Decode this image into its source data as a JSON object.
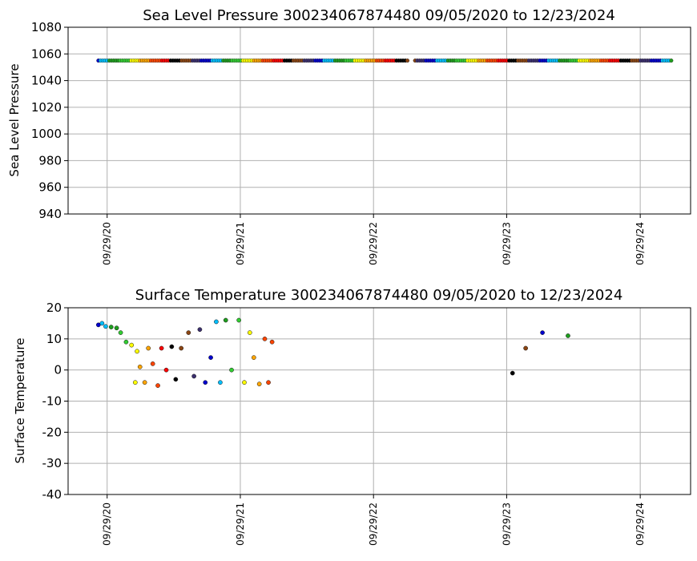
{
  "palette": [
    "#8B4513",
    "#3B2F6E",
    "#0000CD",
    "#00BFFF",
    "#1E9E1E",
    "#32CD32",
    "#FFFF00",
    "#FFA500",
    "#FF4500",
    "#FF0000",
    "#000000"
  ],
  "chart_data": [
    {
      "type": "scatter",
      "title": "Sea Level Pressure 300234067874480  09/05/2020 to 12/23/2024",
      "xlabel": "",
      "ylabel": "Sea Level Pressure",
      "ylim": [
        940,
        1080
      ],
      "yticks": [
        940,
        960,
        980,
        1000,
        1020,
        1040,
        1060,
        1080
      ],
      "xlim": [
        "2020-06-14",
        "2025-02-14"
      ],
      "xticks": [
        {
          "date": "2020-09-29",
          "label": "09/29/20"
        },
        {
          "date": "2021-09-29",
          "label": "09/29/21"
        },
        {
          "date": "2022-09-29",
          "label": "09/29/22"
        },
        {
          "date": "2023-09-29",
          "label": "09/29/23"
        },
        {
          "date": "2024-09-29",
          "label": "09/29/24"
        }
      ],
      "grid": true,
      "segments": [
        {
          "start": "2020-09-05",
          "end": "2022-12-31",
          "value": 1055
        },
        {
          "start": "2023-01-21",
          "end": "2024-12-23",
          "value": 1055
        }
      ]
    },
    {
      "type": "scatter",
      "title": "Surface Temperature 300234067874480  09/05/2020 to 12/23/2024",
      "xlabel": "",
      "ylabel": "Surface Temperature",
      "ylim": [
        -40,
        20
      ],
      "yticks": [
        -40,
        -30,
        -20,
        -10,
        0,
        10,
        20
      ],
      "xlim": [
        "2020-06-14",
        "2025-02-14"
      ],
      "xticks": [
        {
          "date": "2020-09-29",
          "label": "09/29/20"
        },
        {
          "date": "2021-09-29",
          "label": "09/29/21"
        },
        {
          "date": "2022-09-29",
          "label": "09/29/22"
        },
        {
          "date": "2023-09-29",
          "label": "09/29/23"
        },
        {
          "date": "2024-09-29",
          "label": "09/29/24"
        }
      ],
      "grid": true,
      "points": [
        {
          "x": "2020-09-05",
          "y": 14.5
        },
        {
          "x": "2020-09-15",
          "y": 15
        },
        {
          "x": "2020-09-25",
          "y": 14
        },
        {
          "x": "2020-10-10",
          "y": 13.8
        },
        {
          "x": "2020-10-25",
          "y": 13.5
        },
        {
          "x": "2020-11-05",
          "y": 12
        },
        {
          "x": "2020-11-20",
          "y": 9
        },
        {
          "x": "2020-12-05",
          "y": 8
        },
        {
          "x": "2020-12-15",
          "y": -4
        },
        {
          "x": "2020-12-20",
          "y": 6
        },
        {
          "x": "2020-12-28",
          "y": 1
        },
        {
          "x": "2021-01-10",
          "y": -4
        },
        {
          "x": "2021-01-20",
          "y": 7
        },
        {
          "x": "2021-02-01",
          "y": 2
        },
        {
          "x": "2021-02-15",
          "y": -5
        },
        {
          "x": "2021-02-25",
          "y": 7
        },
        {
          "x": "2021-03-10",
          "y": 0
        },
        {
          "x": "2021-03-25",
          "y": 7.5
        },
        {
          "x": "2021-04-05",
          "y": -3
        },
        {
          "x": "2021-04-20",
          "y": 7
        },
        {
          "x": "2021-05-10",
          "y": 12
        },
        {
          "x": "2021-05-25",
          "y": -2
        },
        {
          "x": "2021-06-10",
          "y": 13
        },
        {
          "x": "2021-06-25",
          "y": -4
        },
        {
          "x": "2021-07-10",
          "y": 4
        },
        {
          "x": "2021-07-25",
          "y": 15.5
        },
        {
          "x": "2021-08-05",
          "y": -4
        },
        {
          "x": "2021-08-20",
          "y": 16
        },
        {
          "x": "2021-09-05",
          "y": 0
        },
        {
          "x": "2021-09-25",
          "y": 16
        },
        {
          "x": "2021-10-10",
          "y": -4
        },
        {
          "x": "2021-10-25",
          "y": 12
        },
        {
          "x": "2021-11-05",
          "y": 4
        },
        {
          "x": "2021-11-20",
          "y": -4.5
        },
        {
          "x": "2021-12-05",
          "y": 10
        },
        {
          "x": "2021-12-15",
          "y": -4
        },
        {
          "x": "2021-12-25",
          "y": 9
        },
        {
          "x": "2023-10-15",
          "y": -1
        },
        {
          "x": "2023-11-20",
          "y": 7
        },
        {
          "x": "2024-01-05",
          "y": 12
        },
        {
          "x": "2024-03-15",
          "y": 11
        }
      ]
    }
  ]
}
